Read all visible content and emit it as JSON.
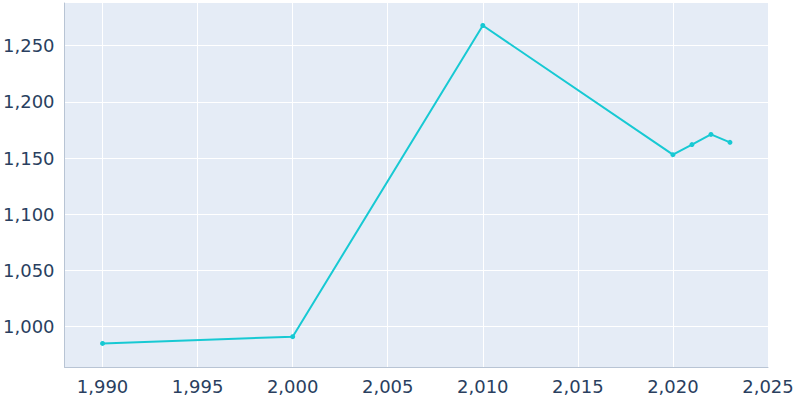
{
  "chart_data": {
    "type": "line",
    "x": [
      1990,
      2000,
      2010,
      2020,
      2021,
      2022,
      2023
    ],
    "values": [
      985,
      991,
      1268,
      1153,
      1162,
      1171,
      1164
    ],
    "color": "#17c9d3",
    "marker": "circle",
    "xlim": [
      1988,
      2025
    ],
    "xticks": [
      1990,
      1995,
      2000,
      2005,
      2010,
      2015,
      2020,
      2025
    ],
    "ylim": [
      964,
      1288
    ],
    "yticks": [
      1000,
      1050,
      1100,
      1150,
      1200,
      1250
    ],
    "grid": true
  }
}
